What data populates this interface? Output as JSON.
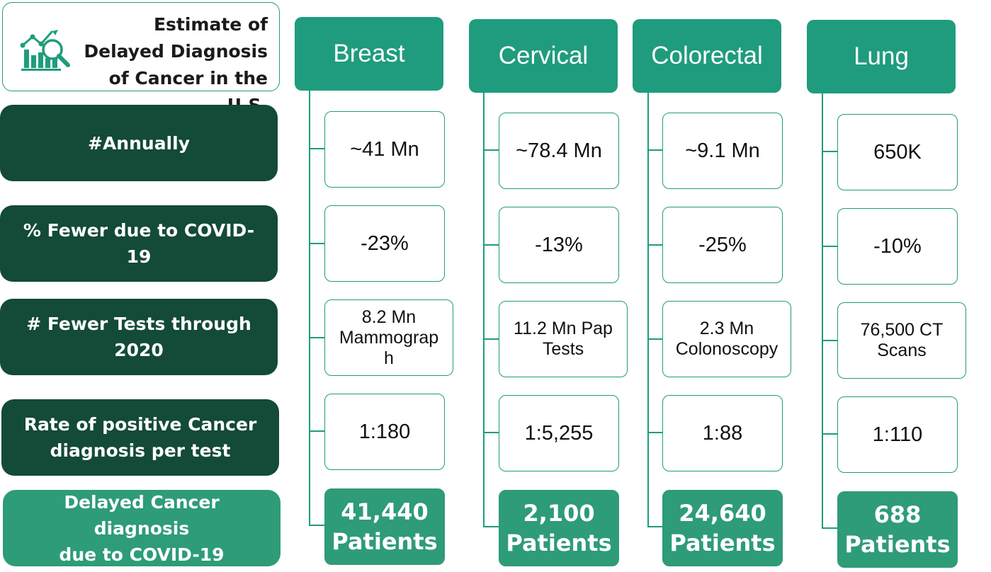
{
  "title": {
    "lines": [
      "Estimate of",
      "Delayed Diagnosis",
      "of Cancer in the U.S."
    ],
    "icon": "analytics-chart-icon"
  },
  "row_labels": [
    [
      "#Annually"
    ],
    [
      "% Fewer due to COVID-19"
    ],
    [
      "# Fewer Tests through",
      "2020"
    ],
    [
      "Rate of positive Cancer",
      "diagnosis per test"
    ],
    [
      "Delayed Cancer diagnosis",
      "due to COVID-19"
    ]
  ],
  "categories": [
    {
      "name": "Breast",
      "values": [
        [
          "~41 Mn"
        ],
        [
          "-23%"
        ],
        [
          "8.2 Mn",
          "Mammograp",
          "h"
        ],
        [
          "1:180"
        ],
        [
          "41,440",
          "Patients"
        ]
      ]
    },
    {
      "name": "Cervical",
      "values": [
        [
          "~78.4 Mn"
        ],
        [
          "-13%"
        ],
        [
          "11.2 Mn Pap",
          "Tests"
        ],
        [
          "1:5,255"
        ],
        [
          "2,100",
          "Patients"
        ]
      ]
    },
    {
      "name": "Colorectal",
      "values": [
        [
          "~9.1 Mn"
        ],
        [
          "-25%"
        ],
        [
          "2.3 Mn",
          "Colonoscopy"
        ],
        [
          "1:88"
        ],
        [
          "24,640",
          "Patients"
        ]
      ]
    },
    {
      "name": "Lung",
      "values": [
        [
          "650K"
        ],
        [
          "-10%"
        ],
        [
          "76,500 CT",
          "Scans"
        ],
        [
          "1:110"
        ],
        [
          "688",
          "Patients"
        ]
      ]
    }
  ],
  "colors": {
    "accent": "#1f9c7d",
    "dark": "#134a38",
    "result": "#2e9b79"
  }
}
